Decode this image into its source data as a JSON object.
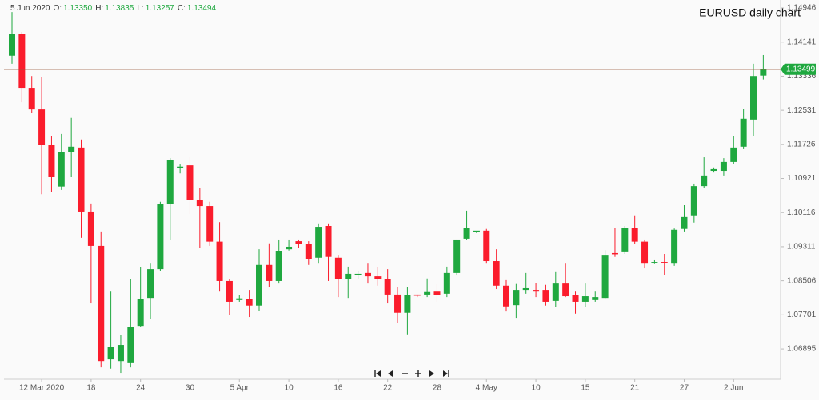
{
  "chart_data": {
    "type": "candlestick",
    "title": "EURUSD daily chart",
    "ohlc_legend": {
      "date": "5 Jun 2020",
      "fields": [
        {
          "label": "O:",
          "value": "1.13350"
        },
        {
          "label": "H:",
          "value": "1.13835"
        },
        {
          "label": "L:",
          "value": "1.13257"
        },
        {
          "label": "C:",
          "value": "1.13494"
        }
      ]
    },
    "current_price": {
      "value": 1.13499,
      "label": "1.13499"
    },
    "categories": [
      null,
      null,
      null,
      "12 Mar 2020",
      null,
      null,
      null,
      null,
      "18",
      null,
      null,
      null,
      null,
      "24",
      null,
      null,
      null,
      null,
      "30",
      null,
      null,
      null,
      null,
      "5 Apr",
      null,
      null,
      null,
      null,
      "10",
      null,
      null,
      null,
      null,
      "16",
      null,
      null,
      null,
      null,
      "22",
      null,
      null,
      null,
      null,
      "28",
      null,
      null,
      null,
      null,
      "4 May",
      null,
      null,
      null,
      null,
      "10",
      null,
      null,
      null,
      null,
      "15",
      null,
      null,
      null,
      null,
      "21",
      null,
      null,
      null,
      null,
      "27",
      null,
      null,
      null,
      null,
      "2 Jun",
      null,
      null,
      null
    ],
    "open": [
      1.1382,
      1.1434,
      1.1306,
      1.1255,
      1.1172,
      1.1073,
      1.1155,
      1.1165,
      1.1014,
      1.0933,
      1.0665,
      1.0661,
      1.0656,
      1.0744,
      1.081,
      1.0878,
      1.1031,
      1.1116,
      1.1123,
      1.1042,
      1.1027,
      1.0943,
      1.085,
      1.0805,
      1.0807,
      1.0792,
      1.0888,
      1.085,
      1.0925,
      1.0944,
      1.0937,
      1.0905,
      1.098,
      1.0905,
      1.0854,
      1.0865,
      1.0869,
      1.0861,
      1.0854,
      1.0818,
      1.0775,
      1.0818,
      1.0818,
      1.0825,
      1.082,
      1.0869,
      1.095,
      1.0965,
      1.0969,
      1.0897,
      1.0839,
      1.0793,
      1.0829,
      1.0829,
      1.0829,
      1.0803,
      1.0844,
      1.0816,
      1.0801,
      1.0805,
      1.081,
      1.0916,
      1.0918,
      1.0976,
      1.0943,
      1.0893,
      1.0895,
      1.0891,
      1.0973,
      1.1005,
      1.1074,
      1.111,
      1.111,
      1.1131,
      1.1167,
      1.1231,
      1.1335
    ],
    "high": [
      1.1485,
      1.1438,
      1.1334,
      1.1331,
      1.1193,
      1.1197,
      1.1235,
      1.1184,
      1.1033,
      1.0967,
      1.0825,
      1.0722,
      1.0854,
      1.0882,
      1.0891,
      1.1037,
      1.114,
      1.1125,
      1.1142,
      1.1069,
      1.1037,
      1.0989,
      1.0854,
      1.0816,
      1.0829,
      1.0925,
      1.0939,
      1.0948,
      1.0948,
      1.0948,
      1.0944,
      1.0986,
      1.0986,
      1.091,
      1.0884,
      1.0873,
      1.0891,
      1.0882,
      1.0878,
      1.0835,
      1.0835,
      1.0818,
      1.0856,
      1.0843,
      1.0884,
      1.0948,
      1.1016,
      1.0967,
      1.0973,
      1.0925,
      1.0852,
      1.0843,
      1.0869,
      1.0846,
      1.0841,
      1.0871,
      1.0891,
      1.0825,
      1.0844,
      1.0825,
      1.0923,
      1.0976,
      1.098,
      1.1005,
      1.0948,
      1.0899,
      1.0914,
      1.0974,
      1.1029,
      1.108,
      1.1142,
      1.1118,
      1.114,
      1.1193,
      1.1257,
      1.1363,
      1.13835
    ],
    "low": [
      1.1363,
      1.1272,
      1.1246,
      1.1055,
      1.1061,
      1.1065,
      1.1095,
      1.0952,
      1.0797,
      1.0646,
      1.0643,
      1.0633,
      1.0646,
      1.0741,
      1.076,
      1.0873,
      1.0948,
      1.1104,
      1.1008,
      1.0929,
      1.0933,
      1.0825,
      1.0769,
      1.0801,
      1.0765,
      1.078,
      1.0835,
      1.0844,
      1.0922,
      1.0929,
      1.0888,
      1.0891,
      1.085,
      1.0812,
      1.081,
      1.0854,
      1.0844,
      1.0839,
      1.0797,
      1.075,
      1.0724,
      1.0812,
      1.0812,
      1.0801,
      1.0812,
      1.0863,
      1.0948,
      1.0963,
      1.0891,
      1.0831,
      1.0778,
      1.0763,
      1.082,
      1.0812,
      1.0792,
      1.0788,
      1.0812,
      1.0773,
      1.0788,
      1.0801,
      1.0807,
      1.0907,
      1.0914,
      1.0937,
      1.088,
      1.089,
      1.0865,
      1.0886,
      1.0967,
      1.0988,
      1.1069,
      1.1106,
      1.1099,
      1.1127,
      1.1163,
      1.1193,
      1.13257
    ],
    "close": [
      1.1434,
      1.1306,
      1.1255,
      1.1172,
      1.1095,
      1.1155,
      1.1167,
      1.1014,
      1.0933,
      1.0661,
      1.0694,
      1.0699,
      1.0741,
      1.0807,
      1.0878,
      1.1031,
      1.1135,
      1.112,
      1.1042,
      1.1027,
      1.0943,
      1.085,
      1.0801,
      1.0809,
      1.0792,
      1.0888,
      1.085,
      1.092,
      1.0931,
      1.0937,
      1.0901,
      1.0978,
      1.0907,
      1.0854,
      1.0867,
      1.0867,
      1.0861,
      1.0854,
      1.0818,
      1.0775,
      1.0816,
      1.0816,
      1.0824,
      1.0816,
      1.0869,
      1.0948,
      1.0976,
      1.0969,
      1.0897,
      1.0839,
      1.079,
      1.0829,
      1.0833,
      1.0825,
      1.0801,
      1.0844,
      1.0814,
      1.0801,
      1.0814,
      1.0812,
      1.091,
      1.0914,
      1.0976,
      1.0943,
      1.0891,
      1.0895,
      1.0893,
      1.0971,
      1.1001,
      1.1074,
      1.1099,
      1.1114,
      1.1131,
      1.1165,
      1.1233,
      1.1334,
      1.13494
    ],
    "up_color": "#1fa83f",
    "down_color": "#fa1c2c",
    "price_line_color": "#9b5a3c",
    "ylim": [
      1.06463,
      1.15135
    ],
    "yticks": [
      1.06895,
      1.07701,
      1.08506,
      1.09311,
      1.10116,
      1.10921,
      1.11726,
      1.12531,
      1.13336,
      1.14141,
      1.14946
    ]
  }
}
